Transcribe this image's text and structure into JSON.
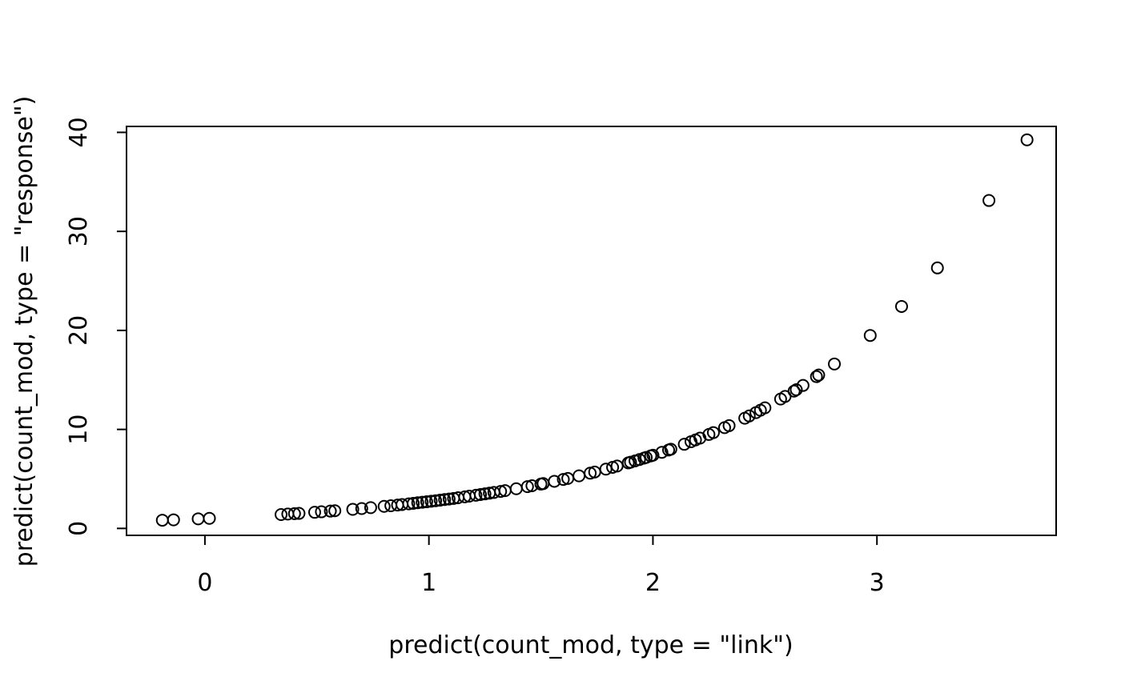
{
  "chart_data": {
    "type": "scatter",
    "title": "",
    "xlabel": "predict(count_mod, type = \"link\")",
    "ylabel": "predict(count_mod, type = \"response\")",
    "xlim": [
      -0.35,
      3.8
    ],
    "ylim": [
      -0.7,
      40.6
    ],
    "x_ticks": [
      0,
      1,
      2,
      3
    ],
    "y_ticks": [
      0,
      10,
      20,
      30,
      40
    ],
    "x_tick_labels": [
      "0",
      "1",
      "2",
      "3"
    ],
    "y_tick_labels": [
      "0",
      "10",
      "20",
      "30",
      "40"
    ],
    "grid": false,
    "legend": "none",
    "marker": "open-circle",
    "colors": {
      "marker": "#000000",
      "axes": "#000000",
      "background": "#ffffff"
    },
    "points": {
      "x": [
        -0.19,
        -0.14,
        -0.03,
        0.02,
        0.34,
        0.37,
        0.4,
        0.42,
        0.49,
        0.52,
        0.56,
        0.58,
        0.66,
        0.7,
        0.74,
        0.8,
        0.83,
        0.86,
        0.88,
        0.91,
        0.93,
        0.95,
        0.97,
        0.99,
        1.01,
        1.03,
        1.05,
        1.07,
        1.09,
        1.11,
        1.13,
        1.16,
        1.18,
        1.21,
        1.23,
        1.25,
        1.27,
        1.29,
        1.32,
        1.34,
        1.39,
        1.44,
        1.46,
        1.5,
        1.51,
        1.56,
        1.6,
        1.62,
        1.67,
        1.72,
        1.74,
        1.79,
        1.82,
        1.84,
        1.89,
        1.9,
        1.92,
        1.94,
        1.96,
        1.97,
        1.99,
        2.0,
        2.04,
        2.07,
        2.08,
        2.14,
        2.17,
        2.19,
        2.21,
        2.25,
        2.27,
        2.32,
        2.34,
        2.41,
        2.43,
        2.46,
        2.48,
        2.5,
        2.57,
        2.59,
        2.63,
        2.64,
        2.67,
        2.73,
        2.74,
        2.81,
        2.97,
        3.11,
        3.27,
        3.5,
        3.67
      ],
      "y": [
        0.83,
        0.87,
        0.97,
        1.02,
        1.4,
        1.45,
        1.49,
        1.52,
        1.63,
        1.68,
        1.75,
        1.79,
        1.93,
        2.01,
        2.1,
        2.23,
        2.29,
        2.36,
        2.41,
        2.48,
        2.53,
        2.59,
        2.64,
        2.69,
        2.75,
        2.8,
        2.86,
        2.92,
        2.97,
        3.03,
        3.1,
        3.19,
        3.26,
        3.35,
        3.42,
        3.49,
        3.56,
        3.63,
        3.74,
        3.82,
        4.01,
        4.22,
        4.31,
        4.48,
        4.53,
        4.76,
        4.95,
        5.05,
        5.31,
        5.58,
        5.7,
        5.99,
        6.17,
        6.3,
        6.62,
        6.69,
        6.82,
        6.96,
        7.1,
        7.17,
        7.32,
        7.39,
        7.69,
        7.92,
        8.0,
        8.5,
        8.76,
        8.94,
        9.12,
        9.49,
        9.68,
        10.18,
        10.38,
        11.13,
        11.36,
        11.7,
        11.94,
        12.18,
        13.07,
        13.33,
        13.87,
        14.01,
        14.44,
        15.33,
        15.49,
        16.61,
        19.49,
        22.42,
        26.31,
        33.12,
        39.25
      ]
    }
  }
}
